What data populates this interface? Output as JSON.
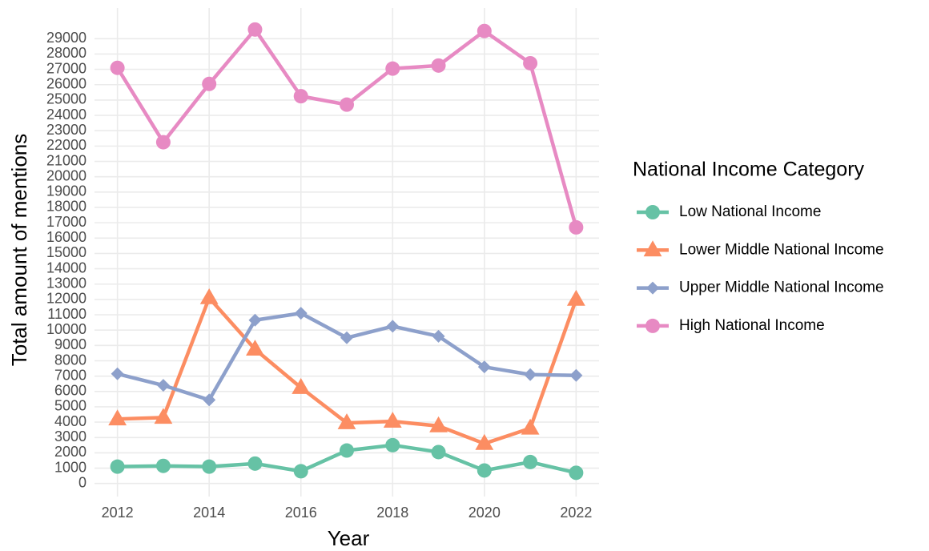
{
  "chart_data": {
    "type": "line",
    "x_label": "Year",
    "y_label": "Total amount of mentions",
    "legend_title": "National Income Category",
    "legend": "right",
    "grid": true,
    "x": [
      2012,
      2013,
      2014,
      2015,
      2016,
      2017,
      2018,
      2019,
      2020,
      2021,
      2022
    ],
    "xlim": [
      2011.5,
      2022.5
    ],
    "xticks": [
      2012,
      2014,
      2016,
      2018,
      2020,
      2022
    ],
    "ylim": [
      -850,
      31000
    ],
    "yticks": [
      0,
      1000,
      2000,
      3000,
      4000,
      5000,
      6000,
      7000,
      8000,
      9000,
      10000,
      11000,
      12000,
      13000,
      14000,
      15000,
      16000,
      17000,
      18000,
      19000,
      20000,
      21000,
      22000,
      23000,
      24000,
      25000,
      26000,
      27000,
      28000,
      29000
    ],
    "series": [
      {
        "name": "Low National Income",
        "color": "#66c2a5",
        "marker": "circle",
        "values": [
          1100,
          1150,
          1100,
          1300,
          800,
          2150,
          2500,
          2050,
          850,
          1400,
          700
        ]
      },
      {
        "name": "Lower Middle National Income",
        "color": "#fc8d62",
        "marker": "triangle",
        "values": [
          4200,
          4300,
          12100,
          8750,
          6250,
          3950,
          4050,
          3750,
          2600,
          3600,
          12000
        ]
      },
      {
        "name": "Upper Middle National Income",
        "color": "#8da0cb",
        "marker": "diamond",
        "values": [
          7150,
          6400,
          5450,
          10650,
          11100,
          9500,
          10250,
          9600,
          7600,
          7100,
          7050
        ]
      },
      {
        "name": "High National Income",
        "color": "#e78ac3",
        "marker": "circle",
        "values": [
          27100,
          22250,
          26050,
          29600,
          25250,
          24700,
          27050,
          27250,
          29500,
          27400,
          16700
        ]
      }
    ]
  }
}
